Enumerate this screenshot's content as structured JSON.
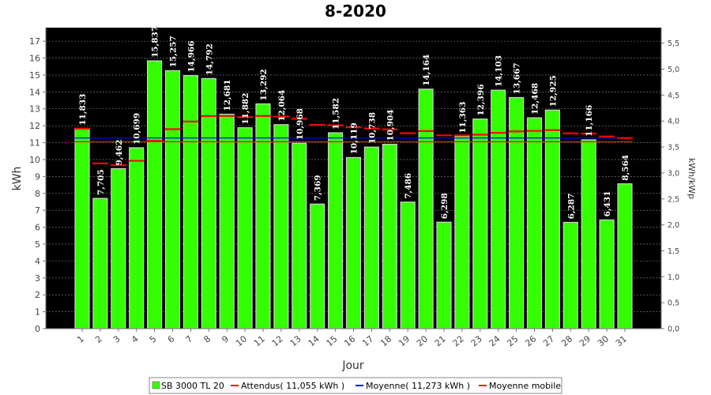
{
  "chart_data": {
    "type": "bar",
    "title": "8-2020",
    "xlabel": "Jour",
    "ylabel": "kWh",
    "y2label": "kWh/kWp",
    "ylim": [
      0,
      17.8
    ],
    "y2lim": [
      0,
      5.8
    ],
    "yticks": [
      0,
      1,
      2,
      3,
      4,
      5,
      6,
      7,
      8,
      9,
      10,
      11,
      12,
      13,
      14,
      15,
      16,
      17
    ],
    "y2ticks": [
      "0,0",
      "0,5",
      "1,0",
      "1,5",
      "2,0",
      "2,5",
      "3,0",
      "3,5",
      "4,0",
      "4,5",
      "5,0",
      "5,5"
    ],
    "grid": true,
    "legend_position": "bottom",
    "colors": {
      "background": "#000000",
      "bar": "#33ff00",
      "expected": "#ff0000",
      "average": "#0000ff",
      "moving_average": "#ff0000"
    },
    "categories": [
      "1",
      "2",
      "3",
      "4",
      "5",
      "6",
      "7",
      "8",
      "9",
      "10",
      "11",
      "12",
      "13",
      "14",
      "15",
      "16",
      "17",
      "18",
      "19",
      "20",
      "21",
      "22",
      "23",
      "24",
      "25",
      "26",
      "27",
      "28",
      "29",
      "30",
      "31"
    ],
    "series": [
      {
        "name": "SB 3000 TL 20",
        "values": [
          11.833,
          7.705,
          9.462,
          10.699,
          15.837,
          15.257,
          14.966,
          14.792,
          12.681,
          11.882,
          13.292,
          12.064,
          10.968,
          7.369,
          11.582,
          10.119,
          10.738,
          10.904,
          7.486,
          14.164,
          6.298,
          11.363,
          12.396,
          14.103,
          13.667,
          12.468,
          12.925,
          6.287,
          11.166,
          6.431,
          8.564
        ],
        "labels": [
          "11,833",
          "7,705",
          "9,462",
          "10,699",
          "15,837",
          "15,257",
          "14,966",
          "14,792",
          "12,681",
          "11,882",
          "13,292",
          "12,064",
          "10,968",
          "7,369",
          "11,582",
          "10,119",
          "10,738",
          "10,904",
          "7,486",
          "14,164",
          "6,298",
          "11,363",
          "12,396",
          "14,103",
          "13,667",
          "12,468",
          "12,925",
          "6,287",
          "11,166",
          "6,431",
          "8,564"
        ]
      }
    ],
    "expected": {
      "name": "Attendus( 11,055 kWh )",
      "value": 11.055
    },
    "average": {
      "name": "Moyenne( 11,273 kWh )",
      "value": 11.273
    },
    "moving_average": {
      "name": "Moyenne mobile",
      "values": [
        11.833,
        9.769,
        9.667,
        9.925,
        11.107,
        11.798,
        12.25,
        12.568,
        12.58,
        12.51,
        12.58,
        12.537,
        12.416,
        12.056,
        12.024,
        11.905,
        11.836,
        11.784,
        11.557,
        11.687,
        11.431,
        11.427,
        11.47,
        11.58,
        11.664,
        11.695,
        11.742,
        11.547,
        11.535,
        11.365,
        11.275
      ]
    }
  }
}
